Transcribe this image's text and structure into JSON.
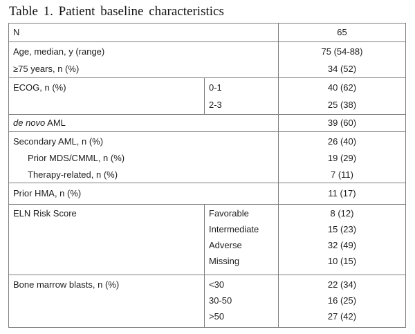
{
  "title": "Table 1. Patient baseline characteristics",
  "colors": {
    "border": "#7d7d7d",
    "text": "#1c1c1c",
    "background": "#ffffff"
  },
  "table": {
    "sections": [
      {
        "label": "N",
        "values": [
          "65"
        ]
      },
      {
        "label_lines": [
          "Age, median, y (range)",
          "≥75 years, n (%)"
        ],
        "values": [
          "75 (54-88)",
          "34 (52)"
        ]
      },
      {
        "label": "ECOG, n (%)",
        "categories": [
          "0-1",
          "2-3"
        ],
        "values": [
          "40 (62)",
          "25 (38)"
        ]
      },
      {
        "label_italic": "de novo",
        "label_rest": " AML",
        "values": [
          "39 (60)"
        ]
      },
      {
        "label_lines": [
          "Secondary AML, n (%)",
          "Prior MDS/CMML, n (%)",
          "Therapy-related, n (%)"
        ],
        "values": [
          "26 (40)",
          "19 (29)",
          "7 (11)"
        ]
      },
      {
        "label": "Prior HMA, n (%)",
        "values": [
          "11 (17)"
        ]
      },
      {
        "label": "ELN Risk Score",
        "categories": [
          "Favorable",
          "Intermediate",
          "Adverse",
          "Missing"
        ],
        "values": [
          "8 (12)",
          "15 (23)",
          "32 (49)",
          "10 (15)"
        ]
      },
      {
        "label": "Bone marrow blasts, n (%)",
        "categories": [
          "<30",
          "30-50",
          ">50"
        ],
        "values": [
          "22 (34)",
          "16 (25)",
          "27 (42)"
        ]
      }
    ]
  }
}
